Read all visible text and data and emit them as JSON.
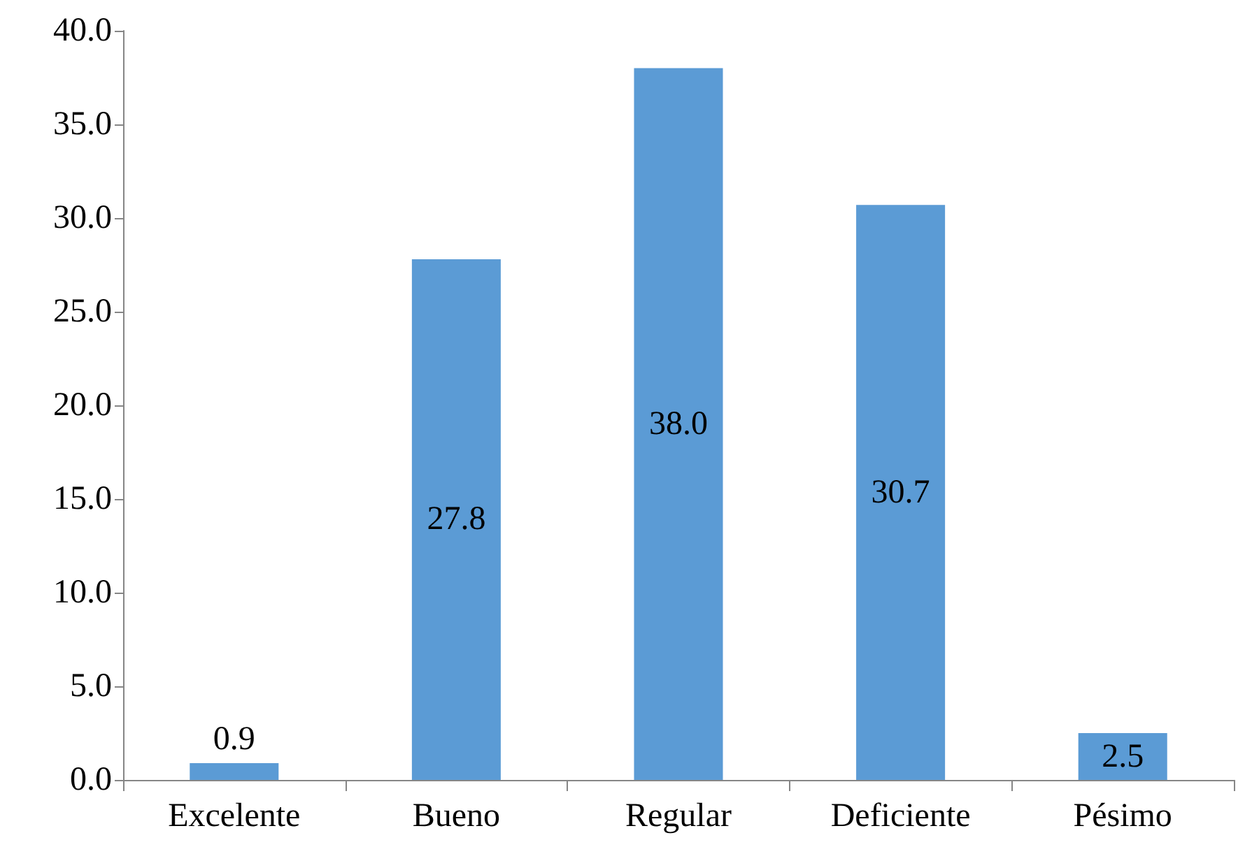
{
  "chart_data": {
    "type": "bar",
    "categories": [
      "Excelente",
      "Bueno",
      "Regular",
      "Deficiente",
      "Pésimo"
    ],
    "values": [
      0.9,
      27.8,
      38.0,
      30.7,
      2.5
    ],
    "value_labels": [
      "0.9",
      "27.8",
      "38.0",
      "30.7",
      "2.5"
    ],
    "color": "#5b9bd5",
    "ylim": [
      0,
      40
    ],
    "yticks": [
      {
        "value": 0,
        "label": "0.0"
      },
      {
        "value": 5,
        "label": "5.0"
      },
      {
        "value": 10,
        "label": "10.0"
      },
      {
        "value": 15,
        "label": "15.0"
      },
      {
        "value": 20,
        "label": "20.0"
      },
      {
        "value": 25,
        "label": "25.0"
      },
      {
        "value": 30,
        "label": "30.0"
      },
      {
        "value": 35,
        "label": "35.0"
      },
      {
        "value": 40,
        "label": "40.0"
      }
    ],
    "grid": false
  }
}
